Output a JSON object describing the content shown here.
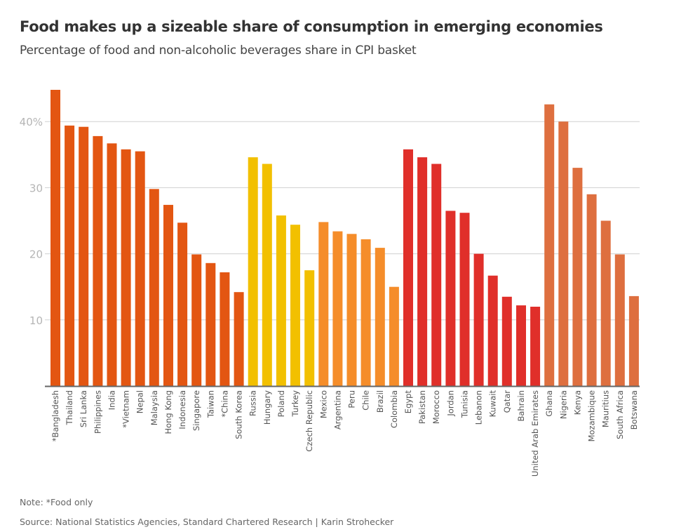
{
  "header": {
    "title": "Food makes up a sizeable share of consumption in emerging economies",
    "subtitle": "Percentage of food and non-alcoholic beverages share in CPI basket"
  },
  "footer": {
    "note": "Note: *Food only",
    "source": "Source: National Statistics Agencies, Standard Chartered Research | Karin Strohecker"
  },
  "colors": {
    "asia": "#e35612",
    "emerging_europe": "#f2c000",
    "latin_america": "#f58d2a",
    "middle_east_north_africa": "#e02f2a",
    "sub_saharan_africa": "#de6f3f",
    "gridline": "#d0d0d0",
    "axis": "#666666",
    "tick_label": "#b5b5b5",
    "category_label": "#555555"
  },
  "chart_data": {
    "type": "bar",
    "title": "Food makes up a sizeable share of consumption in emerging economies",
    "subtitle": "Percentage of food and non-alcoholic beverages share in CPI basket",
    "xlabel": "",
    "ylabel": "",
    "ylim": [
      0,
      45
    ],
    "yticks": [
      10,
      20,
      30,
      40
    ],
    "ytick_labels": [
      "10",
      "20",
      "30",
      "40%"
    ],
    "grid": true,
    "legend": "none",
    "categories": [
      "*Bangladesh",
      "Thailand",
      "Sri Lanka",
      "Philippines",
      "India",
      "*Vietnam",
      "Nepal",
      "Malaysia",
      "Hong Kong",
      "Indonesia",
      "Singapore",
      "Taiwan",
      "*China",
      "South Korea",
      "Russia",
      "Hungary",
      "Poland",
      "Turkey",
      "Czech Republic",
      "Mexico",
      "Argentina",
      "Peru",
      "Chile",
      "Brazil",
      "Colombia",
      "Egypt",
      "Pakistan",
      "Morocco",
      "Jordan",
      "Tunisia",
      "Lebanon",
      "Kuwait",
      "Qatar",
      "Bahrain",
      "United Arab Emirates",
      "Ghana",
      "Nigeria",
      "Kenya",
      "Mozambique",
      "Mauritius",
      "South Africa",
      "Botswana"
    ],
    "values": [
      44.8,
      39.4,
      39.2,
      37.8,
      36.7,
      35.8,
      35.5,
      29.8,
      27.4,
      24.7,
      19.9,
      18.6,
      17.2,
      14.2,
      34.6,
      33.6,
      25.8,
      24.4,
      17.5,
      24.8,
      23.4,
      23.0,
      22.2,
      20.9,
      15.0,
      35.8,
      34.6,
      33.6,
      26.5,
      26.2,
      20.0,
      16.7,
      13.5,
      12.2,
      12.0,
      42.6,
      40.0,
      33.0,
      29.0,
      25.0,
      19.9,
      13.6
    ],
    "groups": [
      "asia",
      "asia",
      "asia",
      "asia",
      "asia",
      "asia",
      "asia",
      "asia",
      "asia",
      "asia",
      "asia",
      "asia",
      "asia",
      "asia",
      "emerging_europe",
      "emerging_europe",
      "emerging_europe",
      "emerging_europe",
      "emerging_europe",
      "latin_america",
      "latin_america",
      "latin_america",
      "latin_america",
      "latin_america",
      "latin_america",
      "middle_east_north_africa",
      "middle_east_north_africa",
      "middle_east_north_africa",
      "middle_east_north_africa",
      "middle_east_north_africa",
      "middle_east_north_africa",
      "middle_east_north_africa",
      "middle_east_north_africa",
      "middle_east_north_africa",
      "middle_east_north_africa",
      "sub_saharan_africa",
      "sub_saharan_africa",
      "sub_saharan_africa",
      "sub_saharan_africa",
      "sub_saharan_africa",
      "sub_saharan_africa",
      "sub_saharan_africa"
    ]
  }
}
